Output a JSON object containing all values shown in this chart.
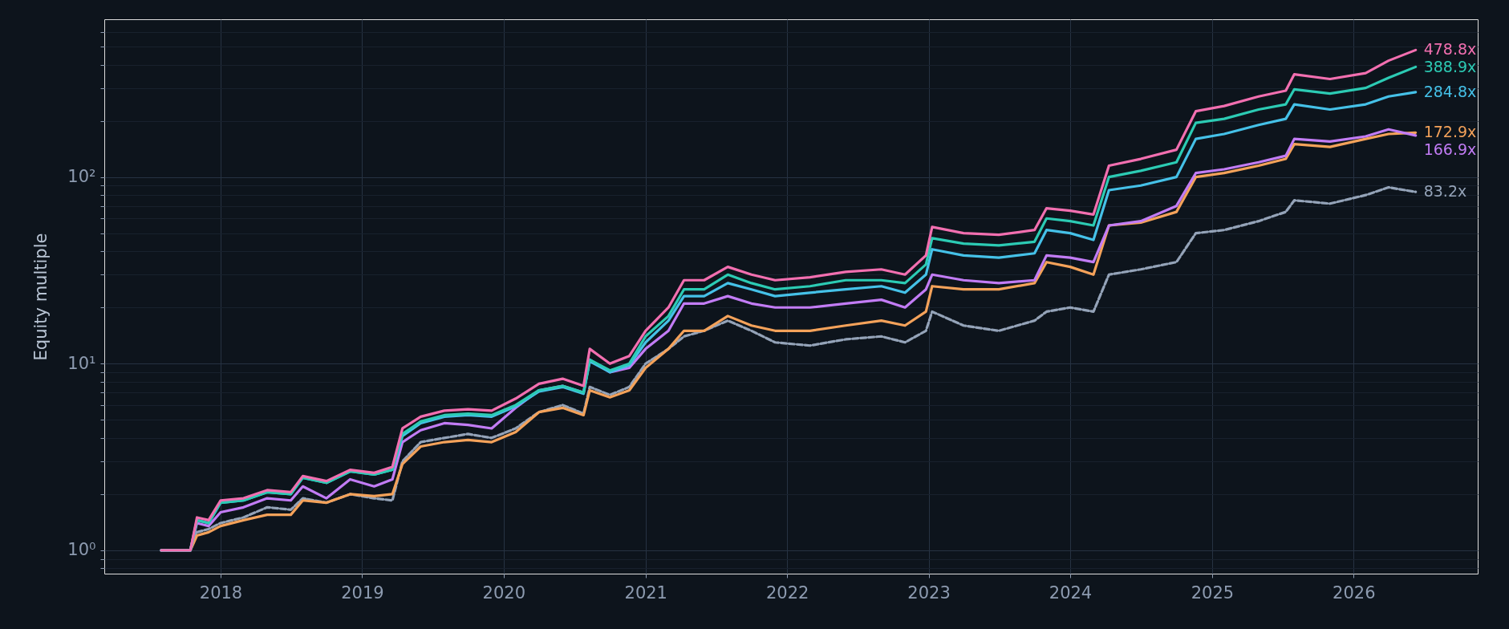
{
  "chart_data": {
    "type": "line",
    "ylabel": "Equity multiple",
    "log": true,
    "grid": true,
    "marker": "none",
    "xlim": [
      "2017-03-07",
      "2026-11-17"
    ],
    "xticks": [
      "2018",
      "2019",
      "2020",
      "2021",
      "2022",
      "2023",
      "2024",
      "2025",
      "2026"
    ],
    "ylim": [
      0.75,
      700
    ],
    "yticks": [
      {
        "value": 0.8,
        "label": null
      },
      {
        "value": 0.9,
        "label": null
      },
      {
        "value": 1,
        "label": "10⁰"
      },
      {
        "value": 2,
        "label": null
      },
      {
        "value": 3,
        "label": null
      },
      {
        "value": 4,
        "label": null
      },
      {
        "value": 5,
        "label": null
      },
      {
        "value": 6,
        "label": null
      },
      {
        "value": 7,
        "label": null
      },
      {
        "value": 8,
        "label": null
      },
      {
        "value": 9,
        "label": null
      },
      {
        "value": 10,
        "label": "10¹"
      },
      {
        "value": 20,
        "label": null
      },
      {
        "value": 30,
        "label": null
      },
      {
        "value": 40,
        "label": null
      },
      {
        "value": 50,
        "label": null
      },
      {
        "value": 60,
        "label": null
      },
      {
        "value": 70,
        "label": null
      },
      {
        "value": 80,
        "label": null
      },
      {
        "value": 90,
        "label": null
      },
      {
        "value": 100,
        "label": "10²"
      },
      {
        "value": 200,
        "label": null
      },
      {
        "value": 300,
        "label": null
      },
      {
        "value": 400,
        "label": null
      },
      {
        "value": 500,
        "label": null
      },
      {
        "value": 600,
        "label": null
      }
    ],
    "x": [
      "2017-08",
      "2017-10-15",
      "2017-11",
      "2017-12",
      "2018-01",
      "2018-03",
      "2018-05",
      "2018-07",
      "2018-08",
      "2018-10",
      "2018-12",
      "2019-02",
      "2019-03-20",
      "2019-04-15",
      "2019-06",
      "2019-08",
      "2019-10",
      "2019-12",
      "2020-02",
      "2020-04",
      "2020-06",
      "2020-07-25",
      "2020-08-10",
      "2020-10",
      "2020-11-20",
      "2021-01",
      "2021-03",
      "2021-04-10",
      "2021-06",
      "2021-08",
      "2021-10",
      "2021-12",
      "2022-03",
      "2022-06",
      "2022-09",
      "2022-11",
      "2022-12-25",
      "2023-01-10",
      "2023-04",
      "2023-07",
      "2023-10",
      "2023-11",
      "2024-01",
      "2024-03-01",
      "2024-04-10",
      "2024-07",
      "2024-10",
      "2024-11-20",
      "2025-02",
      "2025-05",
      "2025-07-10",
      "2025-08",
      "2025-11",
      "2026-02",
      "2026-04",
      "2026-06-10"
    ],
    "series": [
      {
        "color": "#94a3b8",
        "line_style": "dashed",
        "values": [
          1,
          1,
          1.25,
          1.3,
          1.4,
          1.5,
          1.7,
          1.65,
          1.9,
          1.8,
          2.0,
          1.9,
          1.85,
          3.0,
          3.8,
          4.0,
          4.2,
          4.0,
          4.5,
          5.5,
          6.0,
          5.4,
          7.5,
          6.8,
          7.5,
          10,
          12,
          14,
          15,
          17,
          15,
          13,
          12.5,
          13.5,
          14,
          13,
          15,
          19,
          16,
          15,
          17,
          19,
          20,
          19,
          30,
          32,
          35,
          50,
          52,
          58,
          65,
          75,
          72,
          80,
          88,
          83.2
        ]
      },
      {
        "color": "#f4a25a",
        "values": [
          1,
          1,
          1.2,
          1.25,
          1.35,
          1.45,
          1.55,
          1.55,
          1.85,
          1.8,
          2.0,
          1.95,
          2.0,
          2.9,
          3.6,
          3.8,
          3.9,
          3.8,
          4.3,
          5.5,
          5.8,
          5.3,
          7.2,
          6.6,
          7.2,
          9.5,
          12,
          15,
          15,
          18,
          16,
          15,
          15,
          16,
          17,
          16,
          19,
          26,
          25,
          25,
          27,
          35,
          33,
          30,
          55,
          57,
          65,
          100,
          105,
          115,
          125,
          150,
          145,
          160,
          170,
          172.9
        ]
      },
      {
        "color": "#c27cf5",
        "values": [
          1,
          1,
          1.4,
          1.35,
          1.6,
          1.7,
          1.9,
          1.85,
          2.2,
          1.9,
          2.4,
          2.2,
          2.4,
          3.8,
          4.4,
          4.8,
          4.7,
          4.5,
          5.8,
          7.2,
          7.6,
          7.0,
          10.5,
          9.0,
          9.5,
          12,
          15,
          21,
          21,
          23,
          21,
          20,
          20,
          21,
          22,
          20,
          25,
          30,
          28,
          27,
          28,
          38,
          37,
          35,
          55,
          58,
          70,
          105,
          110,
          120,
          130,
          160,
          155,
          165,
          180,
          166.9
        ]
      },
      {
        "color": "#45c1e8",
        "values": [
          1,
          1,
          1.45,
          1.4,
          1.8,
          1.85,
          2.05,
          2.0,
          2.45,
          2.3,
          2.65,
          2.55,
          2.7,
          4.1,
          4.8,
          5.2,
          5.3,
          5.2,
          5.9,
          7.1,
          7.5,
          6.9,
          10.3,
          9.0,
          9.8,
          13,
          17,
          23,
          23,
          27,
          25,
          23,
          24,
          25,
          26,
          24,
          30,
          41,
          38,
          37,
          39,
          52,
          50,
          46,
          85,
          90,
          100,
          160,
          170,
          190,
          205,
          245,
          230,
          245,
          270,
          284.8
        ]
      },
      {
        "color": "#2ccbb4",
        "values": [
          1,
          1,
          1.45,
          1.4,
          1.8,
          1.85,
          2.05,
          2.0,
          2.45,
          2.3,
          2.65,
          2.55,
          2.7,
          4.2,
          4.9,
          5.3,
          5.4,
          5.3,
          6.0,
          7.2,
          7.6,
          7.0,
          10.5,
          9.2,
          10,
          14,
          18,
          25,
          25,
          30,
          27,
          25,
          26,
          28,
          28,
          27,
          34,
          47,
          44,
          43,
          45,
          60,
          58,
          55,
          100,
          108,
          120,
          195,
          205,
          230,
          245,
          295,
          280,
          300,
          340,
          388.9
        ]
      },
      {
        "color": "#f26fb0",
        "values": [
          1,
          1,
          1.5,
          1.45,
          1.85,
          1.9,
          2.1,
          2.05,
          2.5,
          2.35,
          2.7,
          2.6,
          2.8,
          4.5,
          5.2,
          5.6,
          5.7,
          5.6,
          6.5,
          7.8,
          8.3,
          7.6,
          12,
          10,
          11,
          15,
          20,
          28,
          28,
          33,
          30,
          28,
          29,
          31,
          32,
          30,
          38,
          54,
          50,
          49,
          52,
          68,
          66,
          63,
          115,
          125,
          140,
          225,
          240,
          270,
          290,
          355,
          335,
          360,
          420,
          478.8
        ]
      }
    ],
    "annotations": [
      {
        "text": "83.2x",
        "x": "2026-06-10",
        "y": 83.2
      },
      {
        "text": "172.9x",
        "x": "2026-06-10",
        "y": 172.9
      },
      {
        "text": "166.9x",
        "x": "2026-06-10",
        "y": 166.9
      },
      {
        "text": "284.8x",
        "x": "2026-06-10",
        "y": 284.8
      },
      {
        "text": "388.9x",
        "x": "2026-06-10",
        "y": 388.9
      },
      {
        "text": "478.8x",
        "x": "2026-06-10",
        "y": 478.8
      }
    ]
  }
}
